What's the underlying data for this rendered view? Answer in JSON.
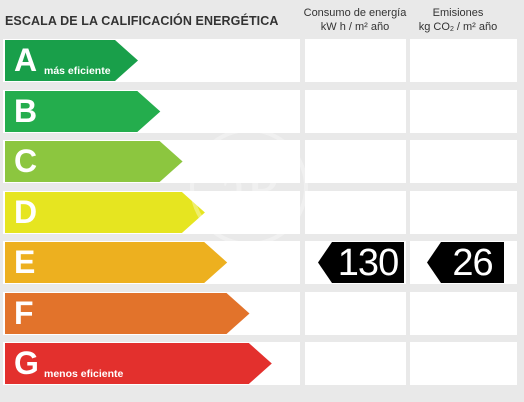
{
  "header": {
    "title": "ESCALA DE LA CALIFICACIÓN ENERGÉTICA",
    "energy_line1": "Consumo de energía",
    "energy_line2": "kW h  / m² año",
    "emissions_line1": "Emisiones",
    "emissions_line2_pre": "kg CO",
    "emissions_line2_sub": "2",
    "emissions_line2_post": "  / m² año"
  },
  "classes": [
    {
      "letter": "A",
      "sublabel": "más eficiente",
      "color": "#199f4a"
    },
    {
      "letter": "B",
      "sublabel": "",
      "color": "#24ad4d"
    },
    {
      "letter": "C",
      "sublabel": "",
      "color": "#8cc63f"
    },
    {
      "letter": "D",
      "sublabel": "",
      "color": "#e6e520"
    },
    {
      "letter": "E",
      "sublabel": "",
      "color": "#edb01f"
    },
    {
      "letter": "F",
      "sublabel": "",
      "color": "#e2732b"
    },
    {
      "letter": "G",
      "sublabel": "menos eficiente",
      "color": "#e3302d"
    }
  ],
  "rating": {
    "class": "E",
    "energy_value": "130",
    "emissions_value": "26"
  },
  "watermark_text": "aP"
}
